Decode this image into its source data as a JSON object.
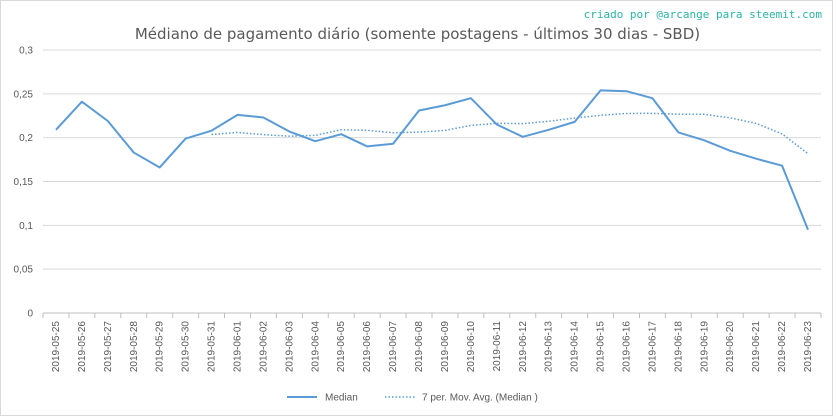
{
  "credit": "criado por @arcange para steemit.com",
  "chart_data": {
    "type": "line",
    "title": "Médiano de pagamento diário (somente postagens - últimos 30 dias - SBD)",
    "categories": [
      "2019-05-25",
      "2019-05-26",
      "2019-05-27",
      "2019-05-28",
      "2019-05-29",
      "2019-05-30",
      "2019-05-31",
      "2019-06-01",
      "2019-06-02",
      "2019-06-03",
      "2019-06-04",
      "2019-06-05",
      "2019-06-06",
      "2019-06-07",
      "2019-06-08",
      "2019-06-09",
      "2019-06-10",
      "2019-06-11",
      "2019-06-12",
      "2019-06-13",
      "2019-06-14",
      "2019-06-15",
      "2019-06-16",
      "2019-06-17",
      "2019-06-18",
      "2019-06-19",
      "2019-06-20",
      "2019-06-21",
      "2019-06-22",
      "2019-06-23"
    ],
    "y_ticks": [
      "0",
      "0,05",
      "0,1",
      "0,15",
      "0,2",
      "0,25",
      "0,3"
    ],
    "ylim": [
      0,
      0.3
    ],
    "grid": true,
    "legend_position": "bottom",
    "series": [
      {
        "name": "Median",
        "style": "solid",
        "color": "#5b9bd5",
        "values": [
          0.209,
          0.241,
          0.219,
          0.183,
          0.166,
          0.199,
          0.208,
          0.226,
          0.223,
          0.207,
          0.196,
          0.204,
          0.19,
          0.193,
          0.231,
          0.237,
          0.245,
          0.215,
          0.201,
          0.209,
          0.218,
          0.254,
          0.253,
          0.245,
          0.206,
          0.197,
          0.185,
          0.176,
          0.168,
          0.095
        ]
      },
      {
        "name": "7 per. Mov. Avg. (Median )",
        "style": "dotted",
        "color": "#5b9bd5",
        "values": [
          null,
          null,
          null,
          null,
          null,
          null,
          0.2036,
          0.206,
          0.2034,
          0.2017,
          0.2027,
          0.209,
          0.2084,
          0.2056,
          0.2063,
          0.2083,
          0.214,
          0.2164,
          0.216,
          0.2187,
          0.2223,
          0.2255,
          0.2276,
          0.2277,
          0.2267,
          0.2267,
          0.2226,
          0.2163,
          0.2043,
          0.1817
        ]
      }
    ]
  }
}
